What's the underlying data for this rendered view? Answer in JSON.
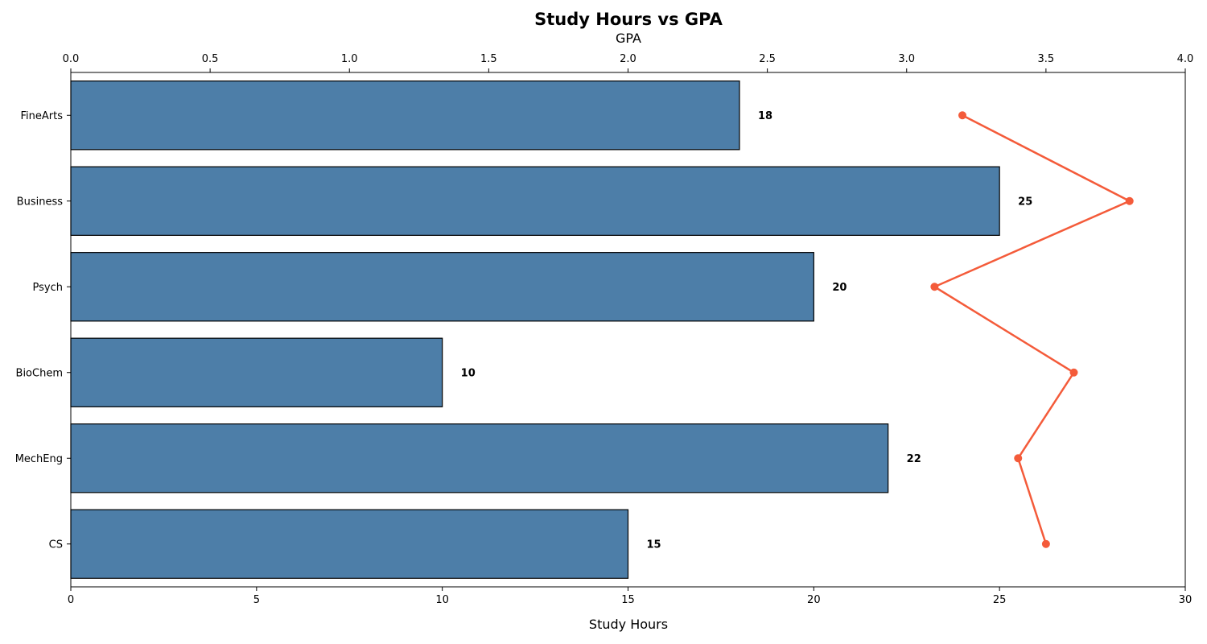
{
  "chart_data": {
    "type": "bar",
    "orientation": "horizontal",
    "title": "Study Hours vs GPA",
    "categories": [
      "CS",
      "MechEng",
      "BioChem",
      "Psych",
      "Business",
      "FineArts"
    ],
    "series": [
      {
        "name": "Study Hours",
        "type": "bar",
        "axis": "bottom",
        "values": [
          15,
          22,
          10,
          20,
          25,
          18
        ],
        "color": "#4d7ea8"
      },
      {
        "name": "GPA",
        "type": "line",
        "axis": "top",
        "values": [
          3.5,
          3.4,
          3.6,
          3.1,
          3.8,
          3.2
        ],
        "color": "#f45b3a"
      }
    ],
    "xlabel": "Study Hours",
    "x2label": "GPA",
    "xlim": [
      0,
      30
    ],
    "x2lim": [
      0,
      4.0
    ],
    "xticks": [
      "0",
      "5",
      "10",
      "15",
      "20",
      "25",
      "30"
    ],
    "x2ticks": [
      "0.0",
      "0.5",
      "1.0",
      "1.5",
      "2.0",
      "2.5",
      "3.0",
      "3.5",
      "4.0"
    ],
    "data_labels": [
      "15",
      "22",
      "10",
      "20",
      "25",
      "18"
    ],
    "grid": false,
    "legend": "none"
  }
}
